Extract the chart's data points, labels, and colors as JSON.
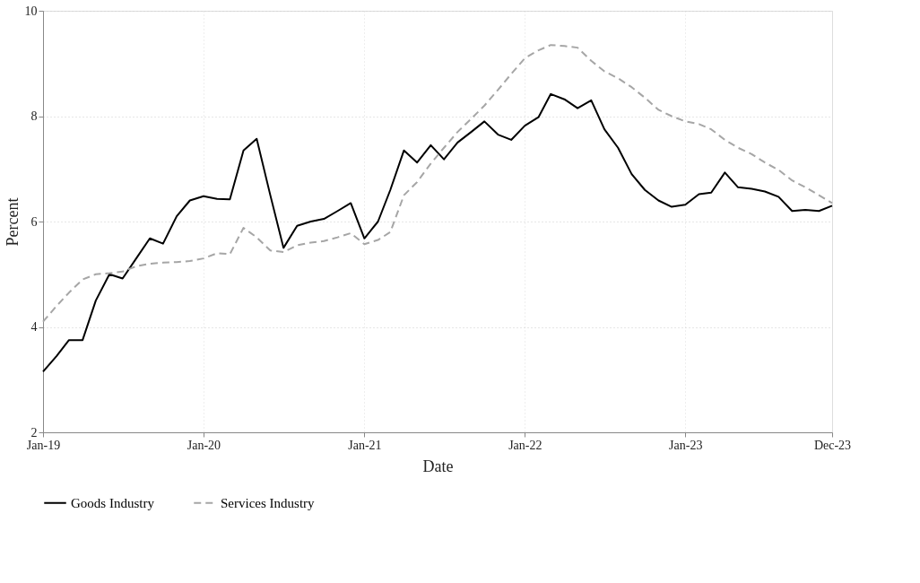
{
  "chart_data": {
    "type": "line",
    "xlabel": "Date",
    "ylabel": "Percent",
    "x": [
      "2019-01",
      "2019-02",
      "2019-03",
      "2019-04",
      "2019-05",
      "2019-06",
      "2019-07",
      "2019-08",
      "2019-09",
      "2019-10",
      "2019-11",
      "2019-12",
      "2020-01",
      "2020-02",
      "2020-03",
      "2020-04",
      "2020-05",
      "2020-06",
      "2020-07",
      "2020-08",
      "2020-09",
      "2020-10",
      "2020-11",
      "2020-12",
      "2021-01",
      "2021-02",
      "2021-03",
      "2021-04",
      "2021-05",
      "2021-06",
      "2021-07",
      "2021-08",
      "2021-09",
      "2021-10",
      "2021-11",
      "2021-12",
      "2022-01",
      "2022-02",
      "2022-03",
      "2022-04",
      "2022-05",
      "2022-06",
      "2022-07",
      "2022-08",
      "2022-09",
      "2022-10",
      "2022-11",
      "2022-12",
      "2023-01",
      "2023-02",
      "2023-03",
      "2023-04",
      "2023-05",
      "2023-06",
      "2023-07",
      "2023-08",
      "2023-09",
      "2023-10",
      "2023-11",
      "2023-12"
    ],
    "series": [
      {
        "name": "Goods Industry",
        "color": "#000000",
        "line_style": "solid",
        "values": [
          3.15,
          3.45,
          3.75,
          3.75,
          4.5,
          5.0,
          4.92,
          5.3,
          5.68,
          5.58,
          6.1,
          6.4,
          6.48,
          6.43,
          6.42,
          7.35,
          7.57,
          6.5,
          5.5,
          5.92,
          6.0,
          6.05,
          6.2,
          6.35,
          5.68,
          6.0,
          6.6,
          7.35,
          7.12,
          7.45,
          7.18,
          7.5,
          7.7,
          7.9,
          7.65,
          7.55,
          7.82,
          7.98,
          8.42,
          8.32,
          8.15,
          8.3,
          7.75,
          7.4,
          6.9,
          6.6,
          6.4,
          6.28,
          6.32,
          6.52,
          6.55,
          6.93,
          6.65,
          6.62,
          6.57,
          6.47,
          6.2,
          6.22,
          6.2,
          6.3
        ]
      },
      {
        "name": "Services Industry",
        "color": "#a6a6a6",
        "line_style": "dashed",
        "values": [
          4.1,
          4.4,
          4.65,
          4.9,
          5.0,
          5.02,
          5.05,
          5.15,
          5.2,
          5.22,
          5.23,
          5.25,
          5.3,
          5.4,
          5.38,
          5.88,
          5.7,
          5.45,
          5.42,
          5.55,
          5.6,
          5.63,
          5.7,
          5.78,
          5.57,
          5.65,
          5.8,
          6.5,
          6.75,
          7.1,
          7.4,
          7.7,
          7.95,
          8.2,
          8.5,
          8.8,
          9.1,
          9.25,
          9.35,
          9.33,
          9.3,
          9.05,
          8.85,
          8.72,
          8.55,
          8.35,
          8.12,
          8.0,
          7.9,
          7.85,
          7.75,
          7.55,
          7.4,
          7.28,
          7.12,
          6.98,
          6.78,
          6.65,
          6.5,
          6.35
        ]
      }
    ],
    "xlim": [
      "2019-01",
      "2023-12"
    ],
    "xticks": [
      {
        "value": "2019-01",
        "label": "Jan-19"
      },
      {
        "value": "2020-01",
        "label": "Jan-20"
      },
      {
        "value": "2021-01",
        "label": "Jan-21"
      },
      {
        "value": "2022-01",
        "label": "Jan-22"
      },
      {
        "value": "2023-01",
        "label": "Jan-23"
      },
      {
        "value": "2023-12",
        "label": "Dec-23"
      }
    ],
    "ylim": [
      2,
      10
    ],
    "yticks": [
      2,
      4,
      6,
      8,
      10
    ],
    "grid": true,
    "legend": "bottom",
    "marker": "none"
  }
}
